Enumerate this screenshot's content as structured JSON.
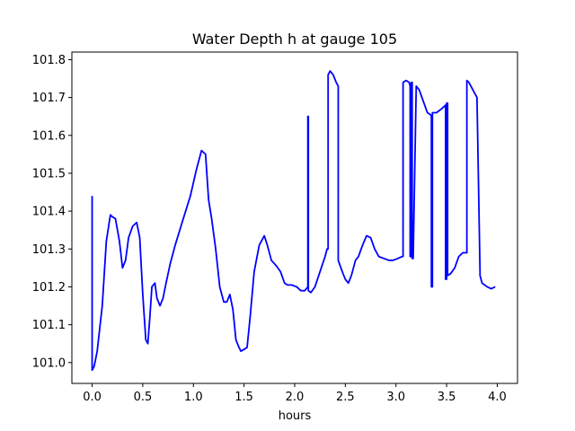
{
  "chart_data": {
    "type": "line",
    "title": "Water Depth h at gauge 105",
    "xlabel": "hours",
    "ylabel": "",
    "xlim": [
      -0.2,
      4.2
    ],
    "ylim": [
      100.945,
      101.82
    ],
    "xticks": [
      0.0,
      0.5,
      1.0,
      1.5,
      2.0,
      2.5,
      3.0,
      3.5,
      4.0
    ],
    "xtick_labels": [
      "0.0",
      "0.5",
      "1.0",
      "1.5",
      "2.0",
      "2.5",
      "3.0",
      "3.5",
      "4.0"
    ],
    "yticks": [
      101.0,
      101.1,
      101.2,
      101.3,
      101.4,
      101.5,
      101.6,
      101.7,
      101.8
    ],
    "ytick_labels": [
      "101.0",
      "101.1",
      "101.2",
      "101.3",
      "101.4",
      "101.5",
      "101.6",
      "101.7",
      "101.8"
    ],
    "grid": false,
    "legend": false,
    "series": [
      {
        "color": "#0000ff",
        "x": [
          0.0,
          0.0,
          0.02,
          0.05,
          0.1,
          0.14,
          0.18,
          0.2,
          0.23,
          0.27,
          0.3,
          0.33,
          0.36,
          0.4,
          0.44,
          0.47,
          0.5,
          0.53,
          0.55,
          0.57,
          0.59,
          0.62,
          0.64,
          0.67,
          0.7,
          0.73,
          0.77,
          0.82,
          0.9,
          0.97,
          1.03,
          1.08,
          1.12,
          1.15,
          1.18,
          1.22,
          1.26,
          1.3,
          1.33,
          1.36,
          1.39,
          1.42,
          1.45,
          1.47,
          1.5,
          1.53,
          1.56,
          1.6,
          1.65,
          1.7,
          1.73,
          1.77,
          1.82,
          1.86,
          1.9,
          1.93,
          1.97,
          2.02,
          2.06,
          2.1,
          2.13,
          2.13,
          2.135,
          2.135,
          2.16,
          2.2,
          2.25,
          2.3,
          2.32,
          2.33,
          2.33,
          2.35,
          2.38,
          2.41,
          2.43,
          2.43,
          2.47,
          2.5,
          2.53,
          2.56,
          2.6,
          2.63,
          2.67,
          2.71,
          2.75,
          2.79,
          2.83,
          2.88,
          2.93,
          2.97,
          3.02,
          3.06,
          3.07,
          3.07,
          3.1,
          3.13,
          3.14,
          3.14,
          3.15,
          3.15,
          3.16,
          3.16,
          3.17,
          3.2,
          3.23,
          3.27,
          3.31,
          3.34,
          3.35,
          3.35,
          3.36,
          3.36,
          3.4,
          3.45,
          3.49,
          3.49,
          3.5,
          3.5,
          3.51,
          3.51,
          3.54,
          3.58,
          3.62,
          3.66,
          3.7,
          3.7,
          3.72,
          3.76,
          3.8,
          3.83,
          3.83,
          3.85,
          3.9,
          3.94,
          3.98
        ],
        "y": [
          101.44,
          100.98,
          100.99,
          101.03,
          101.15,
          101.32,
          101.39,
          101.385,
          101.38,
          101.32,
          101.25,
          101.27,
          101.33,
          101.36,
          101.37,
          101.33,
          101.18,
          101.06,
          101.05,
          101.12,
          101.2,
          101.21,
          101.17,
          101.15,
          101.17,
          101.21,
          101.26,
          101.31,
          101.38,
          101.44,
          101.51,
          101.56,
          101.55,
          101.43,
          101.38,
          101.3,
          101.2,
          101.16,
          101.16,
          101.18,
          101.14,
          101.06,
          101.04,
          101.03,
          101.035,
          101.04,
          101.12,
          101.24,
          101.31,
          101.335,
          101.31,
          101.27,
          101.255,
          101.24,
          101.21,
          101.205,
          101.205,
          101.2,
          101.19,
          101.19,
          101.2,
          101.65,
          101.65,
          101.19,
          101.185,
          101.2,
          101.24,
          101.28,
          101.3,
          101.3,
          101.76,
          101.77,
          101.76,
          101.74,
          101.73,
          101.27,
          101.24,
          101.22,
          101.21,
          101.23,
          101.27,
          101.28,
          101.31,
          101.335,
          101.33,
          101.3,
          101.28,
          101.275,
          101.27,
          101.27,
          101.275,
          101.28,
          101.28,
          101.74,
          101.745,
          101.74,
          101.73,
          101.28,
          101.28,
          101.74,
          101.74,
          101.275,
          101.275,
          101.73,
          101.72,
          101.69,
          101.66,
          101.655,
          101.65,
          101.2,
          101.2,
          101.66,
          101.66,
          101.67,
          101.68,
          101.22,
          101.22,
          101.685,
          101.685,
          101.23,
          101.235,
          101.25,
          101.28,
          101.29,
          101.29,
          101.745,
          101.74,
          101.72,
          101.7,
          101.24,
          101.23,
          101.21,
          101.2,
          101.195,
          101.2
        ]
      }
    ]
  }
}
